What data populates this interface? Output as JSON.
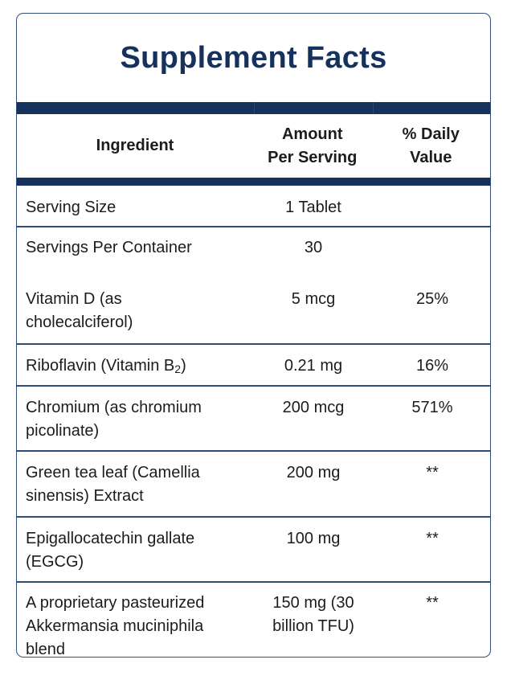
{
  "title": "Supplement Facts",
  "headers": {
    "ingredient": "Ingredient",
    "amount_line1": "Amount",
    "amount_line2": "Per Serving",
    "dv_line1": "% Daily",
    "dv_line2": "Value"
  },
  "rows": [
    {
      "ingredient": [
        "Serving Size"
      ],
      "amount": [
        "1 Tablet"
      ],
      "dv": ""
    },
    {
      "ingredient": [
        "Servings Per Container"
      ],
      "amount": [
        "30"
      ],
      "dv": ""
    },
    {
      "ingredient": [
        "Vitamin D (as",
        "cholecalciferol)"
      ],
      "amount": [
        "5 mcg"
      ],
      "dv": "25%"
    },
    {
      "ingredient_prefix": "Riboflavin (Vitamin B",
      "ingredient_sub": "2",
      "ingredient_suffix": ")",
      "amount": [
        "0.21 mg"
      ],
      "dv": "16%"
    },
    {
      "ingredient": [
        "Chromium (as chromium",
        "picolinate)"
      ],
      "amount": [
        "200 mcg"
      ],
      "dv": "571%"
    },
    {
      "ingredient": [
        "Green tea leaf (Camellia",
        "sinensis) Extract"
      ],
      "amount": [
        "200 mg"
      ],
      "dv": "**"
    },
    {
      "ingredient": [
        "Epigallocatechin gallate",
        "(EGCG)"
      ],
      "amount": [
        "100 mg"
      ],
      "dv": "**"
    },
    {
      "ingredient": [
        "A proprietary pasteurized",
        "Akkermansia muciniphila",
        "blend"
      ],
      "amount": [
        "150 mg (30",
        "billion TFU)"
      ],
      "dv": "**"
    }
  ]
}
